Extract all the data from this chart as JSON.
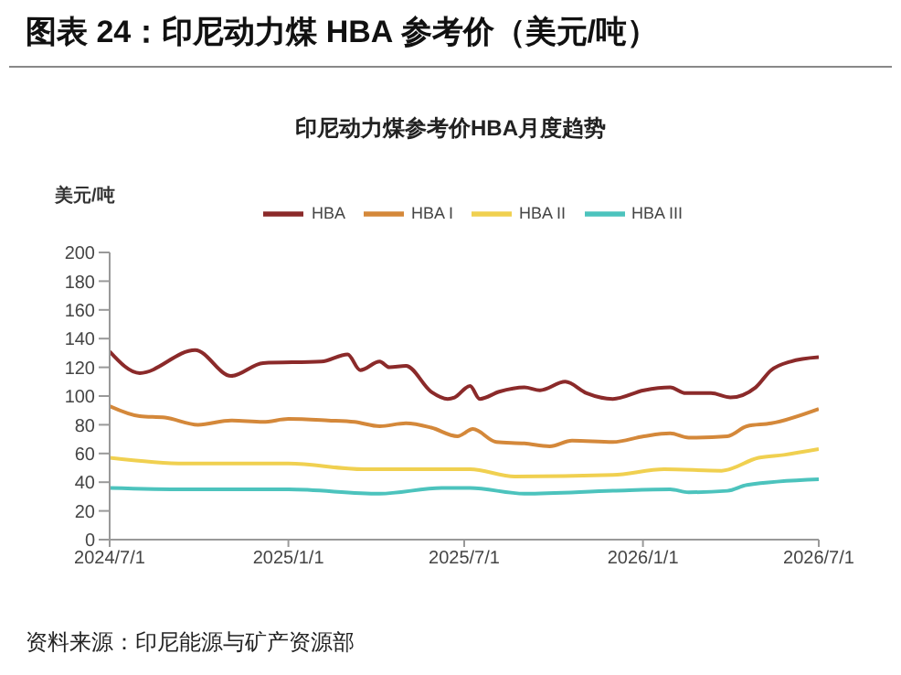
{
  "chart_data": {
    "type": "line",
    "title": "图表 24：印尼动力煤 HBA 参考价（美元/吨）",
    "subtitle": "印尼动力煤参考价HBA月度趋势",
    "ylabel": "美元/吨",
    "annotations": [
      "资料来源：印尼能源与矿产资源部"
    ],
    "series": [
      {
        "name": "HBA",
        "color": "#8b2a2a",
        "x": [
          "2024-07-01",
          "2024-08-01",
          "2024-09-27",
          "2024-11-03",
          "2024-12-06",
          "2025-02-04",
          "2025-03-03",
          "2025-03-16",
          "2025-04-05",
          "2025-04-15",
          "2025-05-02",
          "2025-05-28",
          "2025-06-14",
          "2025-06-21",
          "2025-07-07",
          "2025-07-17",
          "2025-08-06",
          "2025-09-01",
          "2025-09-17",
          "2025-10-13",
          "2025-11-04",
          "2025-12-01",
          "2026-01-02",
          "2026-01-29",
          "2026-02-14",
          "2026-03-12",
          "2026-04-01",
          "2026-04-27",
          "2026-05-13",
          "2026-06-02",
          "2026-07-01"
        ],
        "values": [
          131,
          116,
          132,
          114,
          123,
          124,
          129,
          118,
          124,
          120,
          121,
          103,
          98,
          99,
          107,
          98,
          103,
          106,
          104,
          110,
          102,
          98,
          104,
          106,
          102,
          102,
          99,
          106,
          118,
          124,
          127
        ]
      },
      {
        "name": "HBA I",
        "color": "#d4883a",
        "x": [
          "2024-07-01",
          "2024-08-01",
          "2024-08-27",
          "2024-09-30",
          "2024-11-03",
          "2024-12-06",
          "2025-01-01",
          "2025-02-11",
          "2025-03-10",
          "2025-04-05",
          "2025-05-02",
          "2025-05-28",
          "2025-06-24",
          "2025-07-10",
          "2025-08-03",
          "2025-09-01",
          "2025-09-27",
          "2025-10-20",
          "2025-12-01",
          "2026-01-02",
          "2026-01-29",
          "2026-02-17",
          "2026-03-29",
          "2026-04-18",
          "2026-05-13",
          "2026-07-01"
        ],
        "values": [
          93,
          86,
          85,
          80,
          83,
          82,
          84,
          83,
          82,
          79,
          81,
          78,
          72,
          77,
          68,
          67,
          65,
          69,
          68,
          72,
          74,
          71,
          72,
          79,
          81,
          91
        ]
      },
      {
        "name": "HBA II",
        "color": "#f0d050",
        "x": [
          "2024-07-01",
          "2024-09-17",
          "2025-01-01",
          "2025-03-20",
          "2025-07-07",
          "2025-08-22",
          "2025-12-01",
          "2026-01-23",
          "2026-03-23",
          "2026-04-30",
          "2026-05-26",
          "2026-07-01"
        ],
        "values": [
          57,
          53,
          53,
          49,
          49,
          44,
          45,
          49,
          48,
          57,
          59,
          63
        ]
      },
      {
        "name": "HBA III",
        "color": "#4cc3bd",
        "x": [
          "2024-07-01",
          "2024-09-17",
          "2025-01-01",
          "2025-04-05",
          "2025-06-08",
          "2025-07-07",
          "2025-09-01",
          "2025-12-01",
          "2026-01-29",
          "2026-02-17",
          "2026-03-29",
          "2026-04-18",
          "2026-07-01"
        ],
        "values": [
          36,
          35,
          35,
          32,
          36,
          36,
          32,
          34,
          35,
          33,
          34,
          38,
          42
        ]
      }
    ],
    "xlim": [
      "2024-07-01",
      "2026-07-01"
    ],
    "xticks": [
      {
        "value": "2024-07-01",
        "label": "2024/7/1"
      },
      {
        "value": "2025-01-01",
        "label": "2025/1/1"
      },
      {
        "value": "2025-07-01",
        "label": "2025/7/1"
      },
      {
        "value": "2026-01-01",
        "label": "2026/1/1"
      },
      {
        "value": "2026-07-01",
        "label": "2026/7/1"
      }
    ],
    "ylim": [
      0,
      200
    ],
    "yticks": [
      0,
      20,
      40,
      60,
      80,
      100,
      120,
      140,
      160,
      180,
      200
    ],
    "legend": "top",
    "marker": "none",
    "line_style": "solid"
  }
}
